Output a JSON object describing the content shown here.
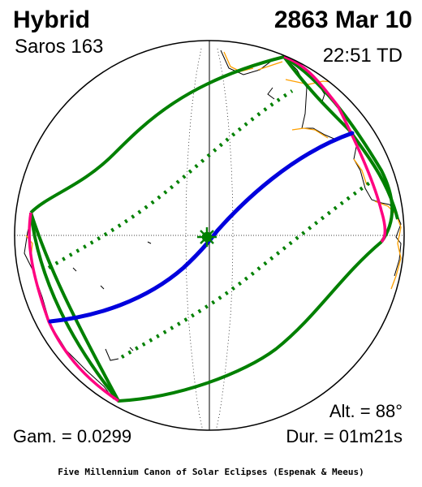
{
  "eclipse": {
    "type": "Hybrid",
    "saros": "Saros 163",
    "date": "2863 Mar 10",
    "time": "22:51 TD",
    "gamma": "Gam. = 0.0299",
    "altitude": "Alt. = 88°",
    "duration": "Dur. = 01m21s"
  },
  "credit": "Five Millennium Canon of Solar Eclipses (Espenak & Meeus)",
  "colors": {
    "central_path": "#0000dd",
    "penumbra_limits": "#008000",
    "rise_set_curves": "#ff0080",
    "political_borders": "#ffa000",
    "coastlines": "#000000"
  },
  "icons": {
    "greatest_eclipse": "asterisk-marker-icon"
  }
}
